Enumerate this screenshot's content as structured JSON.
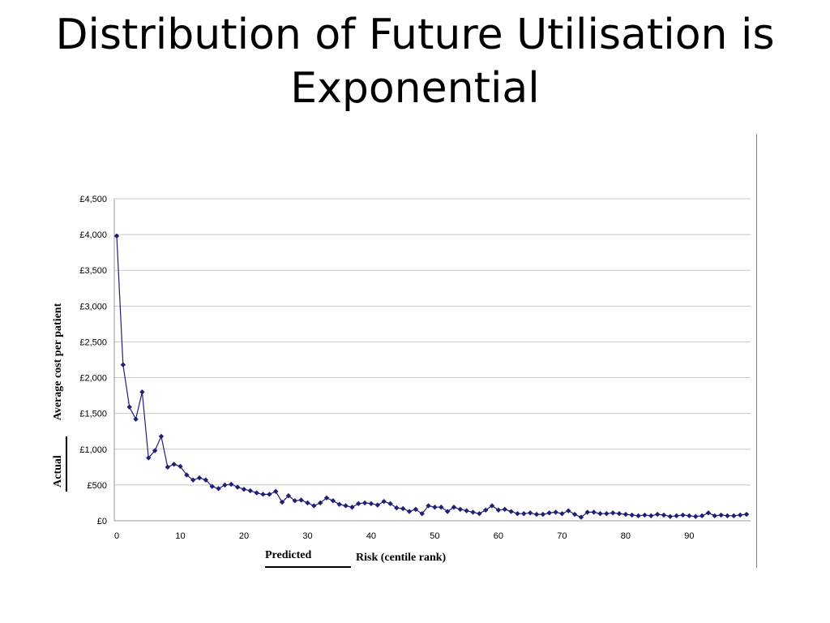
{
  "slide": {
    "title_line1": "Distribution of Future Utilisation is",
    "title_line2": "Exponential"
  },
  "chart_data": {
    "type": "line",
    "title": "",
    "ylabel_line1": "Average cost per patient",
    "ylabel_line2": "Actual",
    "xlabel_line1": "Predicted",
    "xlabel_line2": "Risk (centile rank)",
    "x_ticks": [
      0,
      10,
      20,
      30,
      40,
      50,
      60,
      70,
      80,
      90
    ],
    "y_ticks": [
      "£0",
      "£500",
      "£1,000",
      "£1,500",
      "£2,000",
      "£2,500",
      "£3,000",
      "£3,500",
      "£4,000",
      "£4,500"
    ],
    "xlim": [
      0,
      99
    ],
    "ylim": [
      0,
      4500
    ],
    "grid": true,
    "line_color": "#1f1f7a",
    "marker": "diamond",
    "series": [
      {
        "x": [
          0,
          1,
          2,
          3,
          4,
          5,
          6,
          7,
          8,
          9,
          10,
          11,
          12,
          13,
          14,
          15,
          16,
          17,
          18,
          19,
          20,
          21,
          22,
          23,
          24,
          25,
          26,
          27,
          28,
          29,
          30,
          31,
          32,
          33,
          34,
          35,
          36,
          37,
          38,
          39,
          40,
          41,
          42,
          43,
          44,
          45,
          46,
          47,
          48,
          49,
          50,
          51,
          52,
          53,
          54,
          55,
          56,
          57,
          58,
          59,
          60,
          61,
          62,
          63,
          64,
          65,
          66,
          67,
          68,
          69,
          70,
          71,
          72,
          73,
          74,
          75,
          76,
          77,
          78,
          79,
          80,
          81,
          82,
          83,
          84,
          85,
          86,
          87,
          88,
          89,
          90,
          91,
          92,
          93,
          94,
          95,
          96,
          97,
          98,
          99
        ],
        "values": [
          3980,
          2180,
          1590,
          1420,
          1800,
          880,
          980,
          1180,
          750,
          790,
          760,
          640,
          570,
          600,
          570,
          480,
          450,
          500,
          510,
          470,
          440,
          420,
          390,
          370,
          370,
          410,
          260,
          350,
          280,
          290,
          250,
          210,
          250,
          320,
          280,
          230,
          210,
          190,
          240,
          250,
          240,
          220,
          270,
          240,
          180,
          170,
          130,
          160,
          100,
          210,
          190,
          190,
          130,
          190,
          160,
          140,
          120,
          100,
          150,
          210,
          150,
          160,
          130,
          100,
          100,
          110,
          90,
          90,
          110,
          120,
          100,
          140,
          90,
          50,
          120,
          120,
          100,
          100,
          110,
          100,
          90,
          80,
          70,
          80,
          70,
          90,
          80,
          60,
          70,
          80,
          70,
          60,
          70,
          110,
          70,
          80,
          70,
          70,
          80,
          90
        ]
      }
    ]
  }
}
